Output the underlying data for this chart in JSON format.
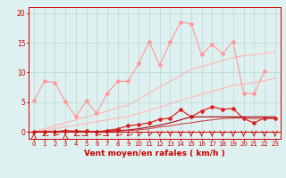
{
  "x": [
    0,
    1,
    2,
    3,
    4,
    5,
    6,
    7,
    8,
    9,
    10,
    11,
    12,
    13,
    14,
    15,
    16,
    17,
    18,
    19,
    20,
    21,
    22,
    23
  ],
  "line1": [
    5.2,
    8.5,
    8.3,
    5.1,
    2.5,
    5.2,
    3.1,
    6.5,
    8.5,
    8.5,
    11.5,
    15.2,
    11.2,
    15.1,
    18.5,
    18.2,
    13.0,
    14.7,
    13.2,
    15.2,
    6.5,
    6.4,
    10.2,
    null
  ],
  "line2": [
    0.0,
    0.0,
    0.0,
    0.2,
    0.1,
    0.1,
    0.0,
    0.2,
    0.5,
    1.0,
    1.2,
    1.5,
    2.1,
    2.3,
    3.7,
    2.5,
    3.5,
    4.2,
    3.8,
    3.9,
    2.2,
    1.5,
    2.3,
    2.2
  ],
  "line3_upper": [
    0.0,
    0.5,
    1.0,
    1.5,
    2.0,
    2.5,
    3.0,
    3.5,
    4.0,
    4.5,
    5.5,
    6.5,
    7.5,
    8.5,
    9.5,
    10.5,
    11.0,
    11.5,
    12.0,
    12.5,
    12.8,
    13.0,
    13.2,
    13.5
  ],
  "line3_lower": [
    0.0,
    0.2,
    0.5,
    0.8,
    1.1,
    1.4,
    1.7,
    2.0,
    2.3,
    2.6,
    3.1,
    3.6,
    4.1,
    4.7,
    5.3,
    5.8,
    6.3,
    6.8,
    7.3,
    7.8,
    8.0,
    8.3,
    8.6,
    9.0
  ],
  "line4": [
    0.0,
    0.0,
    0.0,
    0.0,
    0.0,
    0.0,
    0.0,
    0.1,
    0.2,
    0.3,
    0.5,
    0.8,
    1.1,
    1.5,
    2.0,
    2.5,
    2.5,
    2.5,
    2.5,
    2.5,
    2.5,
    2.5,
    2.5,
    2.5
  ],
  "line5": [
    0.0,
    0.0,
    0.0,
    0.0,
    0.0,
    0.0,
    0.0,
    0.0,
    0.1,
    0.2,
    0.3,
    0.5,
    0.8,
    1.0,
    1.3,
    1.5,
    1.8,
    2.0,
    2.2,
    2.3,
    2.3,
    2.2,
    2.2,
    2.2
  ],
  "bg_color": "#dff0f0",
  "grid_color": "#b8d8d8",
  "line1_color": "#ff9999",
  "line2_color": "#dd2222",
  "line3_color": "#ffbbbb",
  "line4_color": "#aa0000",
  "line5_color": "#cc4444",
  "xlabel": "Vent moyen/en rafales ( km/h )",
  "yticks": [
    0,
    5,
    10,
    15,
    20
  ],
  "ylim": [
    -1.2,
    21
  ],
  "xlim": [
    -0.5,
    23.5
  ],
  "arrow_directions": [
    90,
    225,
    240,
    90,
    225,
    315,
    240,
    315,
    240,
    240,
    260,
    260,
    270,
    270,
    270,
    270,
    270,
    270,
    270,
    270,
    270,
    270,
    270,
    270
  ]
}
